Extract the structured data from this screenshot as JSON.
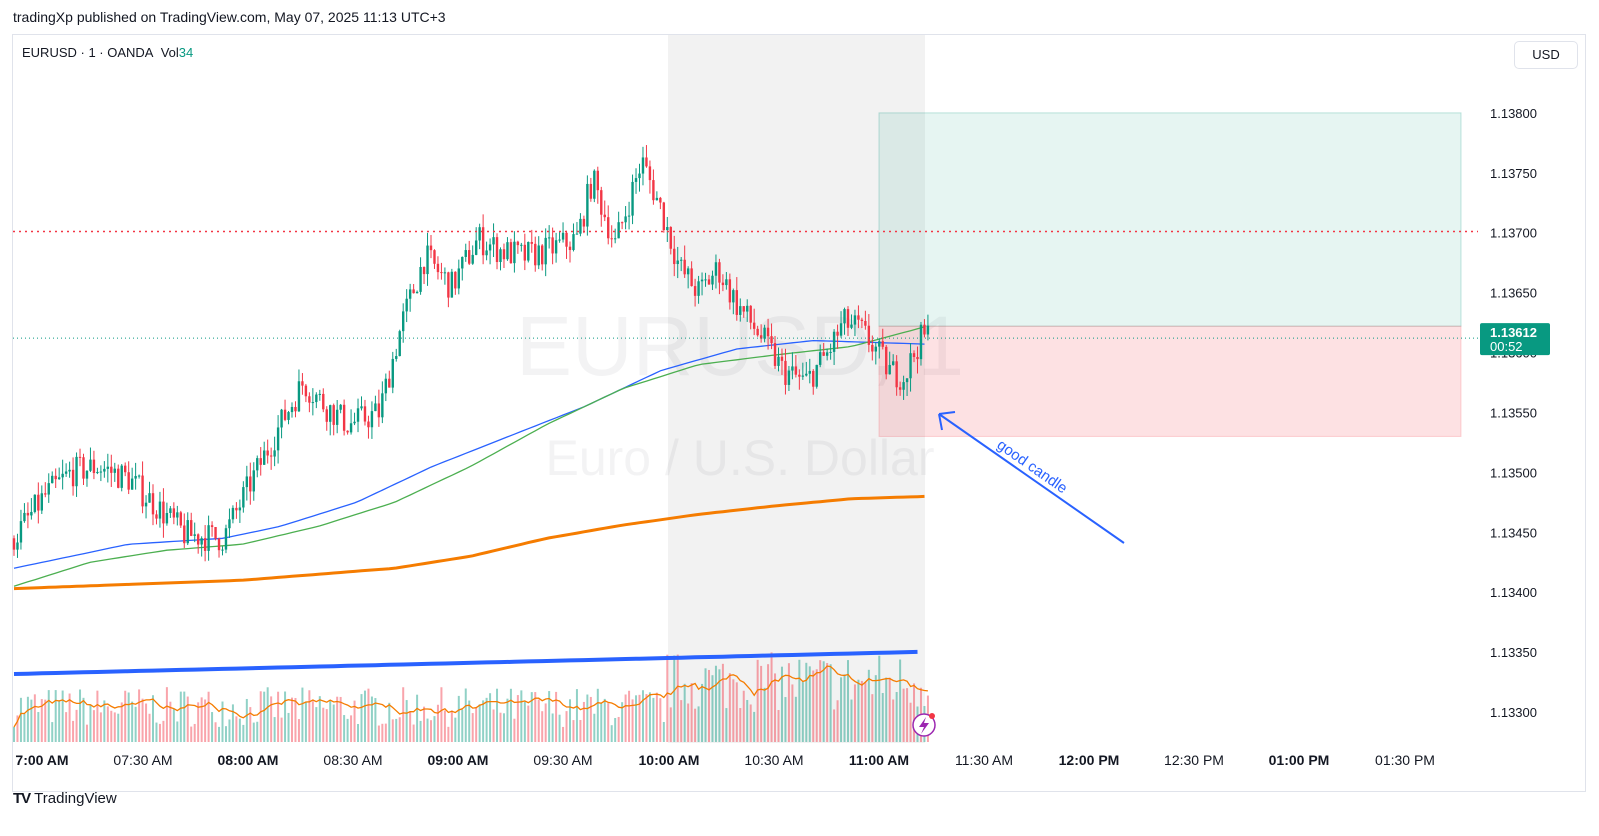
{
  "header": {
    "publisher_line": "tradingXp published on TradingView.com, May 07, 2025 11:13 UTC+3"
  },
  "legend": {
    "symbol": "EURUSD · 1 · OANDA",
    "vol_label": "Vol",
    "vol_value": "34"
  },
  "currency_button": {
    "label": "USD"
  },
  "footer": {
    "brand": "TradingView",
    "logo": "TV"
  },
  "watermark": {
    "line1": "EURUSD, 1",
    "line2": "Euro / U.S. Dollar"
  },
  "annotation": {
    "text": "good candle",
    "color": "#2962ff"
  },
  "last_price": {
    "value": "1.13612",
    "countdown": "00:52",
    "color": "#089981"
  },
  "colors": {
    "up": "#089981",
    "down": "#f23645",
    "ma_blue": "#2962ff",
    "ma_green": "#4caf50",
    "ma_orange": "#f57c00",
    "vol_ma": "#f57c00",
    "resistance": "#f23645"
  },
  "chart_data": {
    "type": "candlestick",
    "ylim": [
      1.13275,
      1.13865
    ],
    "price_ticks": [
      "1.13800",
      "1.13750",
      "1.13700",
      "1.13650",
      "1.13600",
      "1.13550",
      "1.13500",
      "1.13450",
      "1.13400",
      "1.13350",
      "1.13300"
    ],
    "time_ticks": [
      {
        "label": "7:00 AM",
        "bold": true
      },
      {
        "label": "07:30 AM",
        "bold": false
      },
      {
        "label": "08:00 AM",
        "bold": true
      },
      {
        "label": "08:30 AM",
        "bold": false
      },
      {
        "label": "09:00 AM",
        "bold": true
      },
      {
        "label": "09:30 AM",
        "bold": false
      },
      {
        "label": "10:00 AM",
        "bold": true
      },
      {
        "label": "10:30 AM",
        "bold": false
      },
      {
        "label": "11:00 AM",
        "bold": true
      },
      {
        "label": "11:30 AM",
        "bold": false
      },
      {
        "label": "12:00 PM",
        "bold": true
      },
      {
        "label": "12:30 PM",
        "bold": false
      },
      {
        "label": "01:00 PM",
        "bold": true
      },
      {
        "label": "01:30 PM",
        "bold": false
      }
    ],
    "resistance_level": 1.13701,
    "current_price": 1.13612,
    "position": {
      "entry": 1.13622,
      "take_profit": 1.138,
      "stop_loss": 1.1353
    },
    "price_path": [
      {
        "t": 0,
        "p": 1.13445
      },
      {
        "t": 8,
        "p": 1.1348
      },
      {
        "t": 15,
        "p": 1.135
      },
      {
        "t": 22,
        "p": 1.13505
      },
      {
        "t": 30,
        "p": 1.13495
      },
      {
        "t": 38,
        "p": 1.1347
      },
      {
        "t": 45,
        "p": 1.13448
      },
      {
        "t": 55,
        "p": 1.13445
      },
      {
        "t": 62,
        "p": 1.1349
      },
      {
        "t": 70,
        "p": 1.1354
      },
      {
        "t": 76,
        "p": 1.13575
      },
      {
        "t": 82,
        "p": 1.13555
      },
      {
        "t": 88,
        "p": 1.1354
      },
      {
        "t": 96,
        "p": 1.1355
      },
      {
        "t": 102,
        "p": 1.13625
      },
      {
        "t": 108,
        "p": 1.1368
      },
      {
        "t": 115,
        "p": 1.13655
      },
      {
        "t": 122,
        "p": 1.13695
      },
      {
        "t": 128,
        "p": 1.13685
      },
      {
        "t": 134,
        "p": 1.1368
      },
      {
        "t": 140,
        "p": 1.13685
      },
      {
        "t": 148,
        "p": 1.13695
      },
      {
        "t": 152,
        "p": 1.13745
      },
      {
        "t": 158,
        "p": 1.1369
      },
      {
        "t": 165,
        "p": 1.1376
      },
      {
        "t": 170,
        "p": 1.1372
      },
      {
        "t": 175,
        "p": 1.1367
      },
      {
        "t": 180,
        "p": 1.1365
      },
      {
        "t": 185,
        "p": 1.1367
      },
      {
        "t": 190,
        "p": 1.1364
      },
      {
        "t": 196,
        "p": 1.13615
      },
      {
        "t": 202,
        "p": 1.13585
      },
      {
        "t": 208,
        "p": 1.13575
      },
      {
        "t": 214,
        "p": 1.136
      },
      {
        "t": 218,
        "p": 1.13625
      },
      {
        "t": 222,
        "p": 1.1362
      },
      {
        "t": 226,
        "p": 1.13605
      },
      {
        "t": 230,
        "p": 1.13585
      },
      {
        "t": 234,
        "p": 1.1358
      },
      {
        "t": 238,
        "p": 1.1361
      },
      {
        "t": 240,
        "p": 1.13615
      }
    ],
    "ma_blue": [
      {
        "t": 0,
        "p": 1.1342
      },
      {
        "t": 30,
        "p": 1.1344
      },
      {
        "t": 55,
        "p": 1.13445
      },
      {
        "t": 70,
        "p": 1.13455
      },
      {
        "t": 90,
        "p": 1.13475
      },
      {
        "t": 110,
        "p": 1.13505
      },
      {
        "t": 130,
        "p": 1.1353
      },
      {
        "t": 150,
        "p": 1.13555
      },
      {
        "t": 170,
        "p": 1.13585
      },
      {
        "t": 190,
        "p": 1.13603
      },
      {
        "t": 210,
        "p": 1.1361
      },
      {
        "t": 240,
        "p": 1.13607
      }
    ],
    "ma_green": [
      {
        "t": 0,
        "p": 1.13405
      },
      {
        "t": 20,
        "p": 1.13425
      },
      {
        "t": 40,
        "p": 1.13435
      },
      {
        "t": 60,
        "p": 1.1344
      },
      {
        "t": 80,
        "p": 1.13455
      },
      {
        "t": 100,
        "p": 1.13475
      },
      {
        "t": 120,
        "p": 1.13505
      },
      {
        "t": 140,
        "p": 1.1354
      },
      {
        "t": 160,
        "p": 1.1357
      },
      {
        "t": 180,
        "p": 1.1359
      },
      {
        "t": 200,
        "p": 1.13598
      },
      {
        "t": 220,
        "p": 1.13605
      },
      {
        "t": 240,
        "p": 1.13622
      }
    ],
    "ma_orange": [
      {
        "t": 0,
        "p": 1.13403
      },
      {
        "t": 60,
        "p": 1.1341
      },
      {
        "t": 100,
        "p": 1.1342
      },
      {
        "t": 120,
        "p": 1.1343
      },
      {
        "t": 140,
        "p": 1.13445
      },
      {
        "t": 160,
        "p": 1.13456
      },
      {
        "t": 180,
        "p": 1.13465
      },
      {
        "t": 200,
        "p": 1.13472
      },
      {
        "t": 220,
        "p": 1.13478
      },
      {
        "t": 240,
        "p": 1.1348
      }
    ]
  }
}
